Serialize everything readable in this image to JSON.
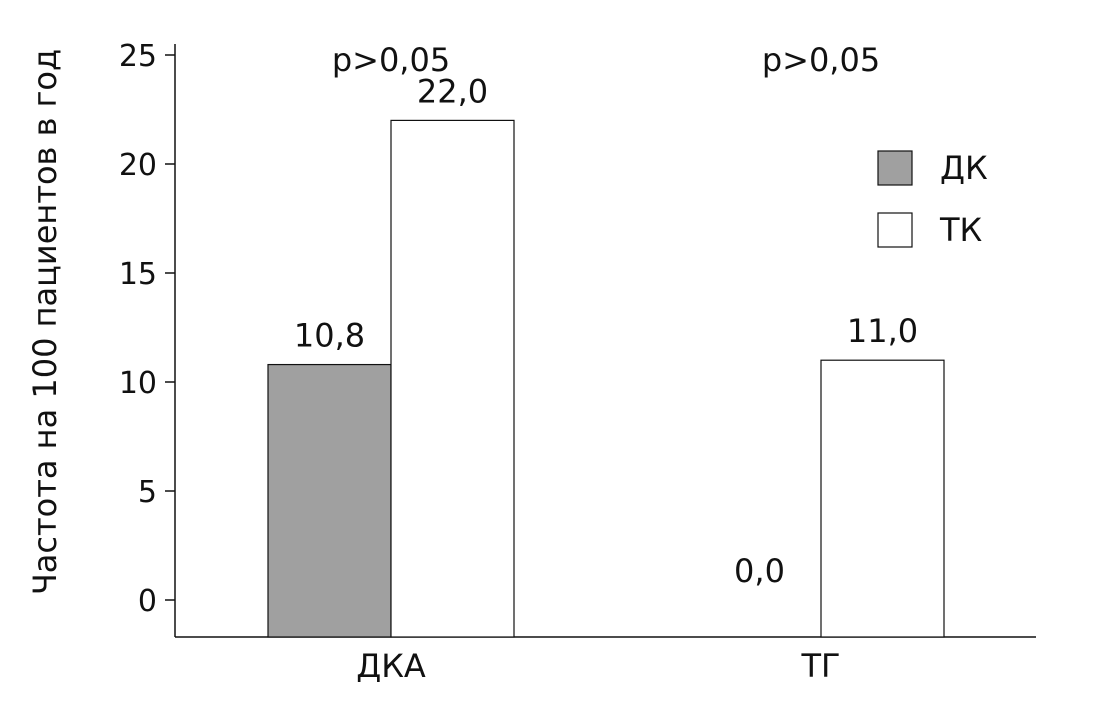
{
  "chart_data": {
    "type": "bar",
    "title": "",
    "xlabel": "",
    "ylabel": "Частота на 100 пациентов в год",
    "ylim": [
      0,
      25
    ],
    "yticks": [
      0,
      5,
      10,
      15,
      20,
      25
    ],
    "categories": [
      "ДКА",
      "ТГ"
    ],
    "series": [
      {
        "name": "ДК",
        "values": [
          10.8,
          0.0
        ],
        "data_labels": [
          "10,8",
          "0,0"
        ],
        "color": "#a0a0a0"
      },
      {
        "name": "ТК",
        "values": [
          22.0,
          11.0
        ],
        "data_labels": [
          "22,0",
          "11,0"
        ],
        "color": "#ffffff"
      }
    ],
    "annotations": [
      "p>0,05",
      "p>0,05"
    ],
    "legend_position": "top-right",
    "grid": false
  }
}
